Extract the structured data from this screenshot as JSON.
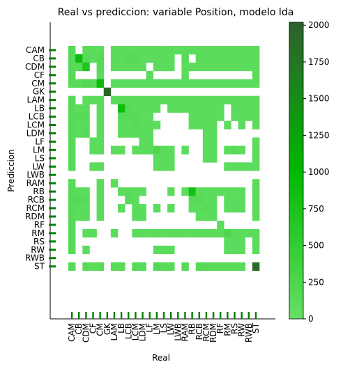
{
  "chart_data": {
    "type": "heatmap",
    "title": "Real vs prediccion: variable Position, modelo lda",
    "xlabel": "Real",
    "ylabel": "Prediccion",
    "categories": [
      "CAM",
      "CB",
      "CDM",
      "CF",
      "CM",
      "GK",
      "LAM",
      "LB",
      "LCB",
      "LCM",
      "LDM",
      "LF",
      "LM",
      "LS",
      "LW",
      "LWB",
      "RAM",
      "RB",
      "RCB",
      "RCM",
      "RDM",
      "RF",
      "RM",
      "RS",
      "RW",
      "RWB",
      "ST"
    ],
    "colorbar": {
      "min": 0,
      "max": 2020,
      "ticks": [
        0,
        250,
        500,
        750,
        1000,
        1250,
        1500,
        1750,
        2000
      ],
      "colors": [
        "#66e066",
        "#00b800",
        "#2f5f2f"
      ]
    },
    "matrix": [
      [
        150,
        0,
        100,
        100,
        100,
        0,
        100,
        100,
        100,
        100,
        100,
        100,
        100,
        100,
        100,
        100,
        100,
        100,
        100,
        100,
        100,
        100,
        100,
        100,
        100,
        100,
        100
      ],
      [
        150,
        900,
        150,
        100,
        150,
        0,
        100,
        100,
        150,
        150,
        100,
        100,
        100,
        100,
        100,
        0,
        150,
        0,
        100,
        100,
        100,
        100,
        100,
        100,
        100,
        100,
        100
      ],
      [
        150,
        150,
        700,
        0,
        150,
        0,
        100,
        100,
        100,
        100,
        100,
        0,
        100,
        100,
        100,
        0,
        100,
        100,
        100,
        100,
        100,
        100,
        100,
        100,
        100,
        100,
        100
      ],
      [
        150,
        0,
        0,
        0,
        100,
        0,
        0,
        0,
        0,
        0,
        0,
        100,
        0,
        0,
        0,
        0,
        100,
        0,
        0,
        0,
        0,
        0,
        0,
        0,
        0,
        0,
        100
      ],
      [
        150,
        150,
        200,
        150,
        900,
        0,
        100,
        100,
        100,
        100,
        100,
        100,
        100,
        100,
        100,
        100,
        100,
        100,
        100,
        100,
        100,
        100,
        100,
        100,
        100,
        100,
        100
      ],
      [
        0,
        0,
        0,
        0,
        0,
        1950,
        0,
        0,
        0,
        0,
        0,
        0,
        0,
        0,
        0,
        0,
        0,
        0,
        0,
        0,
        0,
        0,
        0,
        0,
        0,
        0,
        0
      ],
      [
        150,
        0,
        100,
        100,
        100,
        0,
        100,
        100,
        100,
        100,
        100,
        100,
        100,
        100,
        100,
        100,
        100,
        100,
        100,
        100,
        100,
        100,
        100,
        100,
        100,
        100,
        100
      ],
      [
        150,
        100,
        100,
        0,
        100,
        0,
        0,
        900,
        150,
        100,
        100,
        100,
        100,
        0,
        100,
        100,
        100,
        100,
        100,
        100,
        100,
        100,
        0,
        100,
        100,
        100,
        100
      ],
      [
        150,
        150,
        150,
        0,
        100,
        0,
        0,
        150,
        150,
        150,
        100,
        100,
        0,
        0,
        0,
        0,
        0,
        100,
        100,
        100,
        100,
        100,
        0,
        100,
        100,
        100,
        100
      ],
      [
        150,
        100,
        100,
        0,
        100,
        0,
        0,
        100,
        100,
        150,
        100,
        100,
        100,
        0,
        0,
        0,
        0,
        100,
        100,
        100,
        100,
        0,
        100,
        0,
        100,
        0,
        100
      ],
      [
        150,
        100,
        150,
        0,
        100,
        0,
        0,
        100,
        100,
        100,
        100,
        100,
        0,
        0,
        0,
        0,
        0,
        0,
        0,
        100,
        100,
        0,
        0,
        0,
        0,
        0,
        0
      ],
      [
        150,
        0,
        0,
        100,
        100,
        0,
        0,
        0,
        0,
        0,
        100,
        100,
        0,
        0,
        0,
        0,
        0,
        0,
        0,
        100,
        100,
        0,
        0,
        0,
        0,
        0,
        100
      ],
      [
        150,
        0,
        0,
        100,
        100,
        0,
        100,
        100,
        0,
        100,
        100,
        100,
        250,
        100,
        100,
        0,
        100,
        0,
        0,
        100,
        100,
        0,
        100,
        150,
        100,
        0,
        100
      ],
      [
        150,
        0,
        0,
        0,
        0,
        0,
        0,
        0,
        0,
        0,
        0,
        0,
        100,
        100,
        100,
        0,
        0,
        0,
        0,
        100,
        100,
        0,
        0,
        0,
        0,
        0,
        100
      ],
      [
        150,
        0,
        0,
        100,
        100,
        0,
        0,
        0,
        0,
        0,
        0,
        0,
        100,
        100,
        100,
        0,
        0,
        0,
        0,
        0,
        0,
        0,
        100,
        100,
        100,
        100,
        100
      ],
      [
        0,
        0,
        0,
        0,
        0,
        0,
        0,
        0,
        0,
        0,
        0,
        0,
        0,
        0,
        0,
        0,
        0,
        0,
        0,
        0,
        0,
        0,
        0,
        0,
        0,
        0,
        0
      ],
      [
        150,
        0,
        0,
        0,
        100,
        0,
        100,
        0,
        0,
        0,
        0,
        0,
        0,
        0,
        0,
        0,
        0,
        0,
        0,
        0,
        0,
        0,
        0,
        0,
        0,
        0,
        100
      ],
      [
        150,
        100,
        100,
        0,
        100,
        0,
        0,
        100,
        100,
        100,
        100,
        0,
        0,
        0,
        100,
        0,
        100,
        800,
        100,
        100,
        100,
        100,
        100,
        100,
        100,
        0,
        100
      ],
      [
        150,
        150,
        150,
        0,
        100,
        0,
        0,
        0,
        150,
        100,
        0,
        0,
        0,
        0,
        0,
        0,
        0,
        150,
        150,
        100,
        100,
        0,
        100,
        100,
        100,
        0,
        100
      ],
      [
        150,
        100,
        100,
        0,
        100,
        0,
        0,
        100,
        0,
        100,
        100,
        0,
        100,
        0,
        100,
        0,
        0,
        100,
        100,
        150,
        100,
        0,
        100,
        100,
        100,
        0,
        100
      ],
      [
        150,
        100,
        100,
        0,
        100,
        0,
        0,
        0,
        0,
        100,
        100,
        0,
        0,
        0,
        0,
        0,
        0,
        0,
        100,
        100,
        100,
        0,
        0,
        0,
        0,
        0,
        100
      ],
      [
        150,
        0,
        0,
        0,
        0,
        0,
        0,
        0,
        0,
        0,
        0,
        0,
        0,
        0,
        0,
        0,
        0,
        0,
        0,
        0,
        0,
        100,
        0,
        0,
        0,
        0,
        0
      ],
      [
        150,
        0,
        100,
        100,
        0,
        0,
        100,
        0,
        0,
        100,
        100,
        100,
        100,
        100,
        100,
        100,
        100,
        100,
        100,
        100,
        100,
        100,
        250,
        100,
        100,
        100,
        100
      ],
      [
        150,
        0,
        0,
        0,
        0,
        0,
        0,
        0,
        0,
        0,
        0,
        0,
        0,
        0,
        0,
        0,
        0,
        0,
        0,
        0,
        0,
        0,
        100,
        100,
        100,
        0,
        100
      ],
      [
        150,
        0,
        100,
        0,
        0,
        0,
        0,
        0,
        0,
        0,
        0,
        0,
        100,
        100,
        100,
        0,
        0,
        0,
        0,
        0,
        0,
        0,
        100,
        100,
        100,
        0,
        100
      ],
      [
        0,
        0,
        0,
        0,
        0,
        0,
        0,
        0,
        0,
        0,
        0,
        0,
        0,
        0,
        0,
        0,
        0,
        0,
        0,
        0,
        0,
        0,
        0,
        0,
        0,
        0,
        0
      ],
      [
        150,
        0,
        150,
        100,
        150,
        0,
        150,
        150,
        0,
        150,
        150,
        0,
        200,
        150,
        150,
        0,
        150,
        0,
        150,
        150,
        150,
        150,
        150,
        150,
        150,
        0,
        1900
      ]
    ]
  }
}
